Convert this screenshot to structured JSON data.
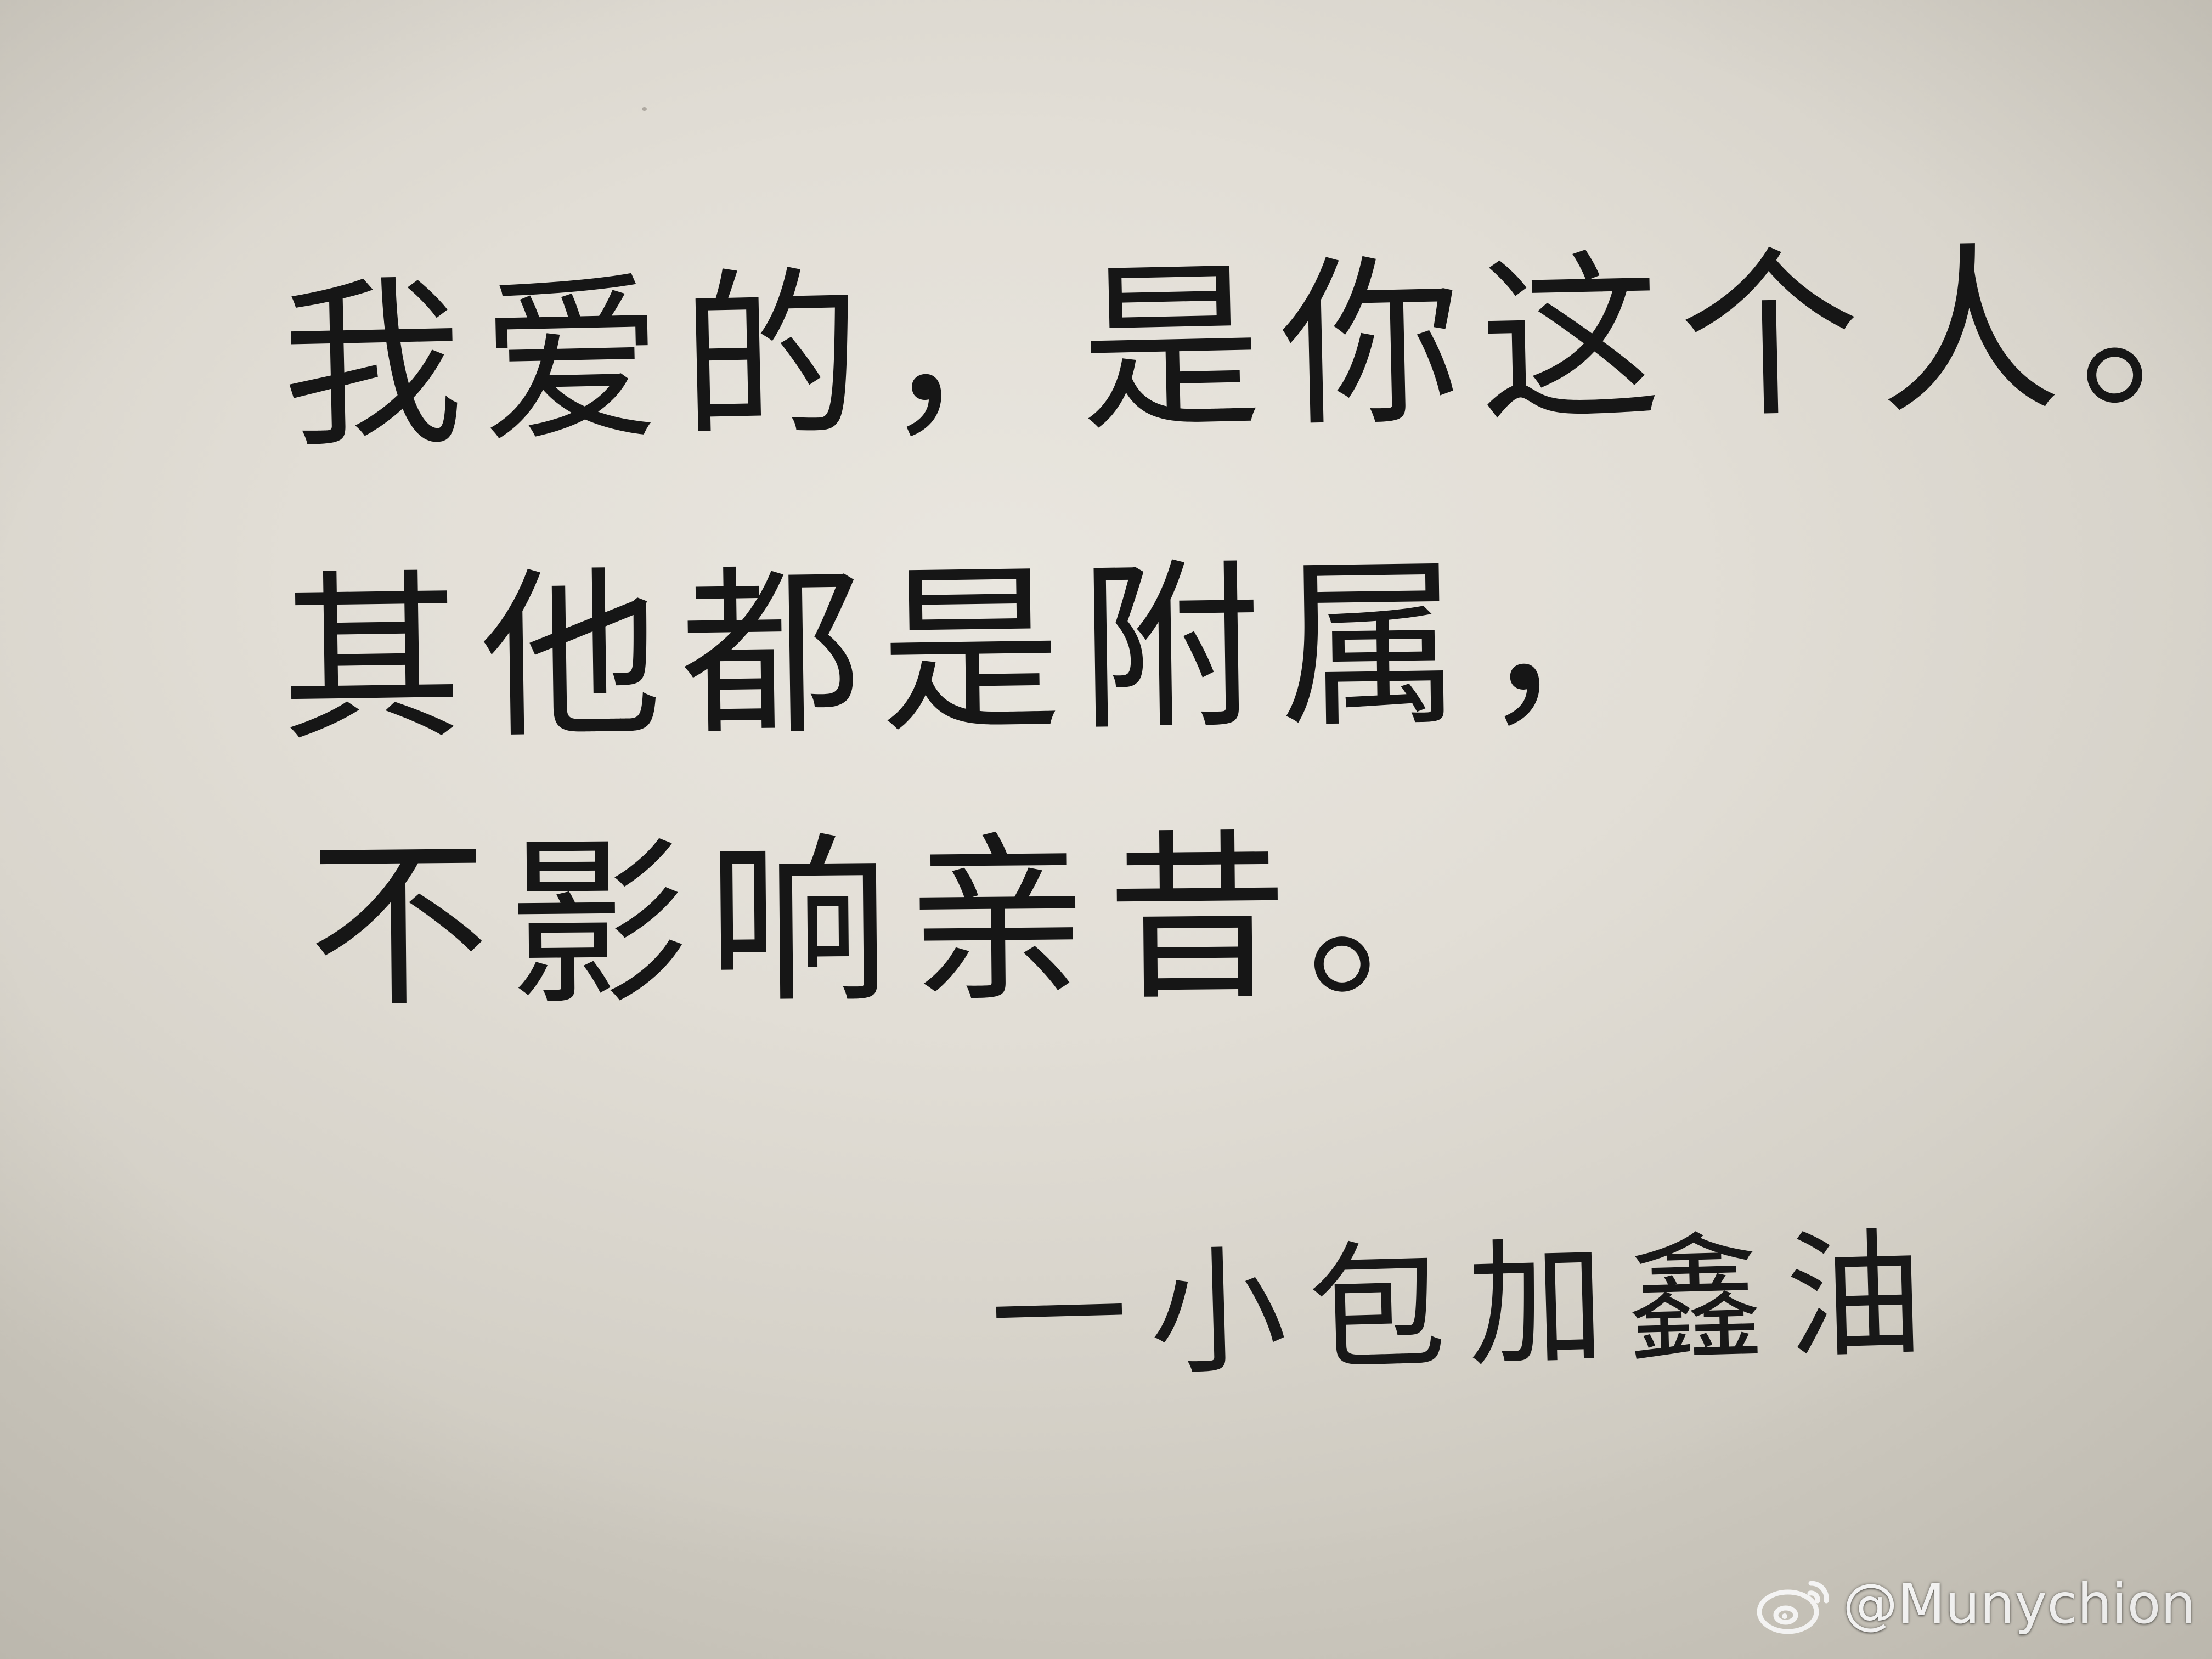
{
  "note": {
    "lines": [
      "我爱的，是你这个人。",
      "其他都是附属，",
      "不影响亲昔。"
    ],
    "signature": "一小包加鑫油"
  },
  "watermark": {
    "icon": "weibo-icon",
    "text": "@Munychion"
  },
  "colors": {
    "paper": "#e4e0d8",
    "ink": "#161616",
    "watermark": "#ffffff"
  }
}
